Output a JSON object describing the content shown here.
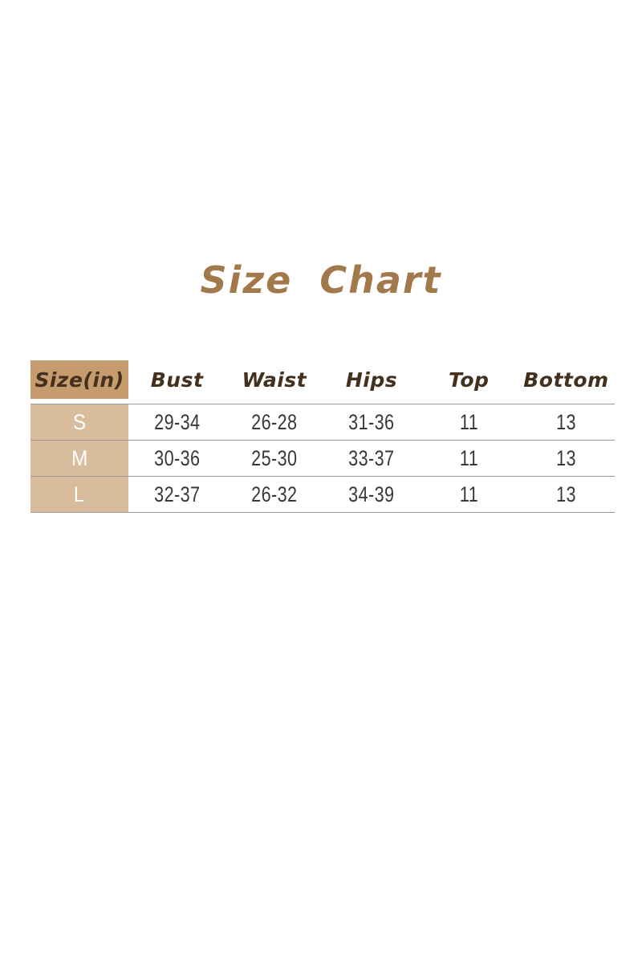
{
  "colors": {
    "page_bg": "#ffffff",
    "title_text": "#a1794a",
    "header_text": "#44301e",
    "header_cell_bg": "#c69c6e",
    "size_cell_bg": "#d9bc9b",
    "size_cell_text": "#ffffff",
    "value_text": "#383838",
    "divider": "#9a9a9a"
  },
  "chart_data": {
    "type": "table",
    "title": "Size Chart",
    "columns": [
      "Size(in)",
      "Bust",
      "Waist",
      "Hips",
      "Top",
      "Bottom"
    ],
    "rows": [
      [
        "S",
        "29-34",
        "26-28",
        "31-36",
        "11",
        "13"
      ],
      [
        "M",
        "30-36",
        "25-30",
        "33-37",
        "11",
        "13"
      ],
      [
        "L",
        "32-37",
        "26-32",
        "34-39",
        "11",
        "13"
      ]
    ]
  }
}
